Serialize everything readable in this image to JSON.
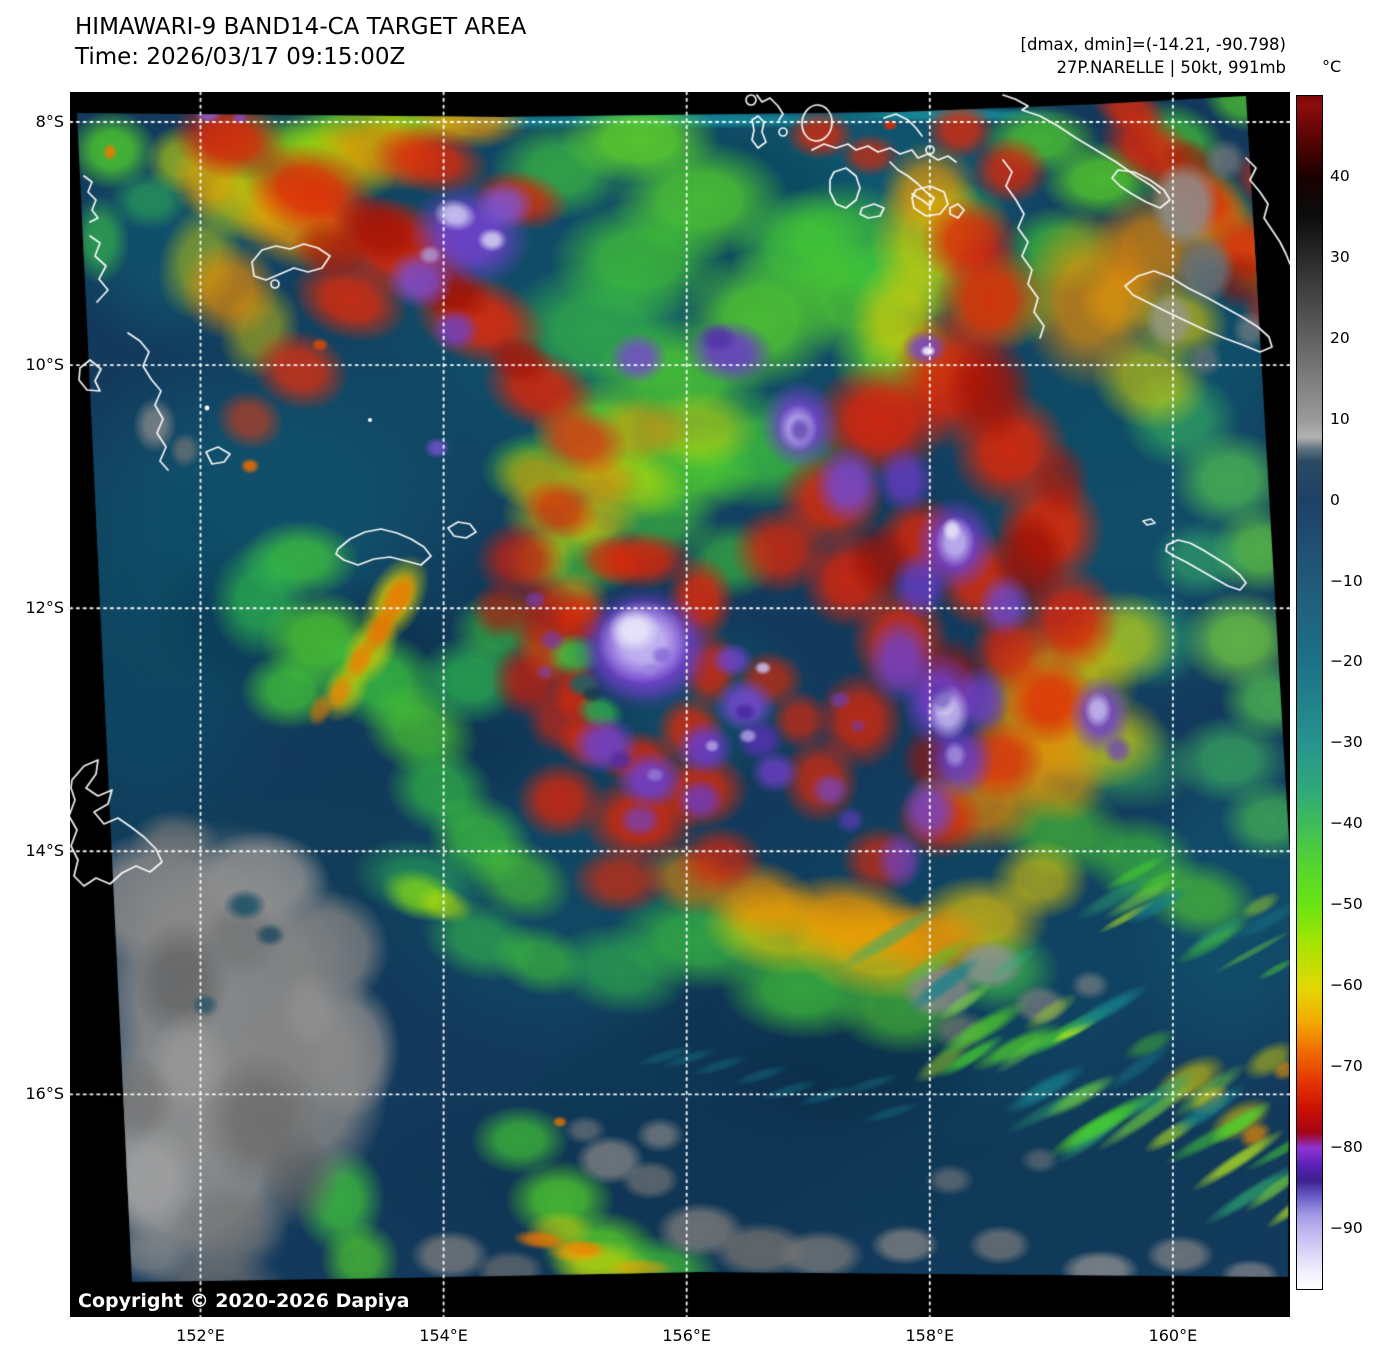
{
  "header": {
    "title": "HIMAWARI-9 BAND14-CA TARGET AREA",
    "time_line": "Time: 2026/03/17 09:15:00Z",
    "minmax_line": "[dmax, dmin]=(-14.21, -90.798)",
    "storm_line": "27P.NARELLE | 50kt, 991mb"
  },
  "colorbar": {
    "unit_label": "°C",
    "ticks": [
      "40",
      "30",
      "20",
      "10",
      "0",
      "−10",
      "−20",
      "−30",
      "−40",
      "−50",
      "−60",
      "−70",
      "−80",
      "−90"
    ],
    "tick_values": [
      40,
      30,
      20,
      10,
      0,
      -10,
      -20,
      -30,
      -40,
      -50,
      -60,
      -70,
      -80,
      -90
    ],
    "gradient_stops": [
      [
        "0%",
        "#7a0606"
      ],
      [
        "0.8%",
        "#8d0d0d"
      ],
      [
        "3.5%",
        "#5a0404"
      ],
      [
        "6.9%",
        "#190101"
      ],
      [
        "10%",
        "#0c0c0c"
      ],
      [
        "27.2%",
        "#9a9a9a"
      ],
      [
        "28.6%",
        "#b2b2b2"
      ],
      [
        "29.6%",
        "#5d7280"
      ],
      [
        "30.6%",
        "#2b4b64"
      ],
      [
        "34%",
        "#1d4166"
      ],
      [
        "40.8%",
        "#215a7c"
      ],
      [
        "47.6%",
        "#1d7187"
      ],
      [
        "54.3%",
        "#27948f"
      ],
      [
        "58%",
        "#2fa87c"
      ],
      [
        "61.1%",
        "#3fbc5a"
      ],
      [
        "64.5%",
        "#55d42f"
      ],
      [
        "67.9%",
        "#69e513"
      ],
      [
        "71.3%",
        "#abe300"
      ],
      [
        "74.7%",
        "#e3d800"
      ],
      [
        "77.4%",
        "#f2ae00"
      ],
      [
        "80.1%",
        "#ef6c01"
      ],
      [
        "82.8%",
        "#e33201"
      ],
      [
        "84.9%",
        "#cb1103"
      ],
      [
        "86.9%",
        "#a40416"
      ],
      [
        "88.2%",
        "#8e35d5"
      ],
      [
        "89.6%",
        "#5b21b5"
      ],
      [
        "90.9%",
        "#3d2090"
      ],
      [
        "92.3%",
        "#6a5fc8"
      ],
      [
        "93.7%",
        "#9f97e4"
      ],
      [
        "95%",
        "#bcb3ee"
      ],
      [
        "97.1%",
        "#dcd8f8"
      ],
      [
        "99.1%",
        "#f7f6fe"
      ],
      [
        "100%",
        "#ffffff"
      ]
    ]
  },
  "axes": {
    "lat_ticks": [
      "8°S",
      "10°S",
      "12°S",
      "14°S",
      "16°S"
    ],
    "lon_ticks": [
      "152°E",
      "154°E",
      "156°E",
      "158°E",
      "160°E"
    ]
  },
  "footer": {
    "copyright": "Copyright © 2020-2026 Dapiya"
  },
  "palette": {
    "background": "#000000",
    "ocean": "#133a5c",
    "teal": "#0f6076",
    "green": "#45cd34",
    "yellow": "#e0d800",
    "orange": "#f59a00",
    "red": "#df2508",
    "dark_red": "#9c1005",
    "purple": "#6f42cc",
    "lavender": "#c6bcf2",
    "land_gray": "#8b8b8b",
    "coastline": "#ffffff",
    "grid": "#ffffff"
  }
}
